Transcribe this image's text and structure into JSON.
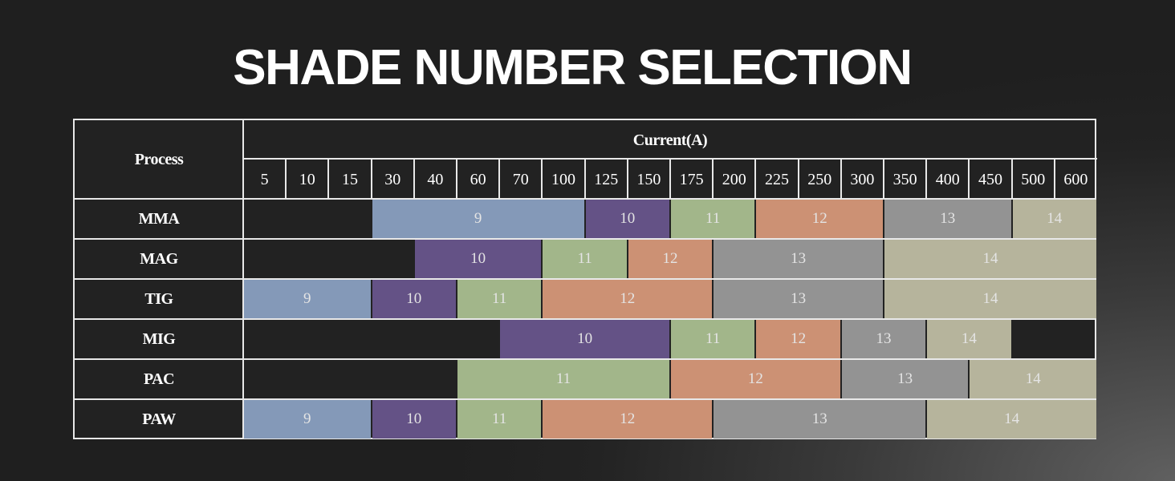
{
  "title": "SHADE NUMBER SELECTION",
  "header": {
    "process": "Process",
    "current": "Current(A)"
  },
  "currents": [
    "5",
    "10",
    "15",
    "30",
    "40",
    "60",
    "70",
    "100",
    "125",
    "150",
    "175",
    "200",
    "225",
    "250",
    "300",
    "350",
    "400",
    "450",
    "500",
    "600"
  ],
  "colors": {
    "9": "#8499b8",
    "10": "#645286",
    "11": "#a2b68a",
    "12": "#cc9174",
    "13": "#939393",
    "14": "#b6b49c"
  },
  "rows": [
    {
      "process": "MMA",
      "segments": [
        {
          "shade": "9",
          "from": 3,
          "to": 8
        },
        {
          "shade": "10",
          "from": 8,
          "to": 10
        },
        {
          "shade": "11",
          "from": 10,
          "to": 12
        },
        {
          "shade": "12",
          "from": 12,
          "to": 15
        },
        {
          "shade": "13",
          "from": 15,
          "to": 18
        },
        {
          "shade": "14",
          "from": 18,
          "to": 20
        }
      ]
    },
    {
      "process": "MAG",
      "segments": [
        {
          "shade": "10",
          "from": 4,
          "to": 7
        },
        {
          "shade": "11",
          "from": 7,
          "to": 9
        },
        {
          "shade": "12",
          "from": 9,
          "to": 11
        },
        {
          "shade": "13",
          "from": 11,
          "to": 15
        },
        {
          "shade": "14",
          "from": 15,
          "to": 20
        }
      ]
    },
    {
      "process": "TIG",
      "segments": [
        {
          "shade": "9",
          "from": 0,
          "to": 3
        },
        {
          "shade": "10",
          "from": 3,
          "to": 5
        },
        {
          "shade": "11",
          "from": 5,
          "to": 7
        },
        {
          "shade": "12",
          "from": 7,
          "to": 11
        },
        {
          "shade": "13",
          "from": 11,
          "to": 15
        },
        {
          "shade": "14",
          "from": 15,
          "to": 20
        }
      ]
    },
    {
      "process": "MIG",
      "segments": [
        {
          "shade": "10",
          "from": 6,
          "to": 10
        },
        {
          "shade": "11",
          "from": 10,
          "to": 12
        },
        {
          "shade": "12",
          "from": 12,
          "to": 14
        },
        {
          "shade": "13",
          "from": 14,
          "to": 16
        },
        {
          "shade": "14",
          "from": 16,
          "to": 18
        }
      ]
    },
    {
      "process": "PAC",
      "segments": [
        {
          "shade": "11",
          "from": 5,
          "to": 10
        },
        {
          "shade": "12",
          "from": 10,
          "to": 14
        },
        {
          "shade": "13",
          "from": 14,
          "to": 17
        },
        {
          "shade": "14",
          "from": 17,
          "to": 20
        }
      ]
    },
    {
      "process": "PAW",
      "segments": [
        {
          "shade": "9",
          "from": 0,
          "to": 3
        },
        {
          "shade": "10",
          "from": 3,
          "to": 5
        },
        {
          "shade": "11",
          "from": 5,
          "to": 7
        },
        {
          "shade": "12",
          "from": 7,
          "to": 11
        },
        {
          "shade": "13",
          "from": 11,
          "to": 16
        },
        {
          "shade": "14",
          "from": 16,
          "to": 20
        }
      ]
    }
  ]
}
